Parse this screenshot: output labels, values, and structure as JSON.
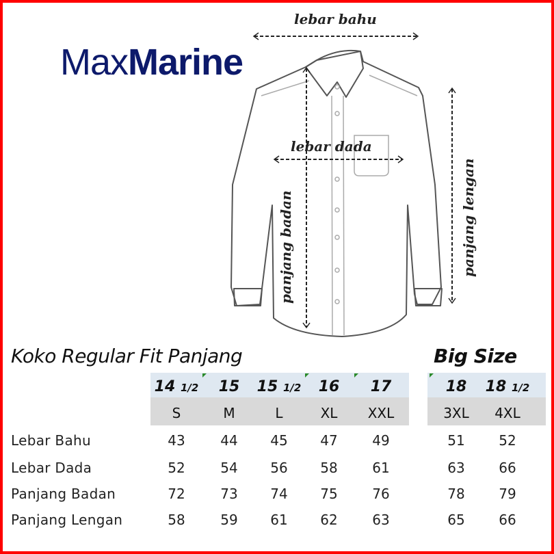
{
  "brand": {
    "part1": "Max",
    "part2": "Marine"
  },
  "diagram": {
    "lebar_bahu": "lebar bahu",
    "lebar_dada": "lebar dada",
    "panjang_badan": "panjang badan",
    "panjang_lengan": "panjang lengan"
  },
  "table": {
    "title": "Koko Regular Fit Panjang",
    "big_title": "Big Size",
    "collar_sizes": [
      {
        "whole": "14",
        "frac": "1/2"
      },
      {
        "whole": "15",
        "frac": ""
      },
      {
        "whole": "15",
        "frac": "1/2"
      },
      {
        "whole": "16",
        "frac": ""
      },
      {
        "whole": "17",
        "frac": ""
      },
      {
        "whole": "18",
        "frac": ""
      },
      {
        "whole": "18",
        "frac": "1/2"
      }
    ],
    "sizes": [
      "S",
      "M",
      "L",
      "XL",
      "XXL",
      "3XL",
      "4XL"
    ],
    "rows": [
      {
        "label": "Lebar Bahu",
        "values": [
          "43",
          "44",
          "45",
          "47",
          "49",
          "51",
          "52"
        ]
      },
      {
        "label": "Lebar Dada",
        "values": [
          "52",
          "54",
          "56",
          "58",
          "61",
          "63",
          "66"
        ]
      },
      {
        "label": "Panjang Badan",
        "values": [
          "72",
          "73",
          "74",
          "75",
          "76",
          "78",
          "79"
        ]
      },
      {
        "label": "Panjang Lengan",
        "values": [
          "58",
          "59",
          "61",
          "62",
          "63",
          "65",
          "66"
        ]
      }
    ]
  },
  "colors": {
    "border": "#ff0000",
    "brand": "#0d1a6b",
    "header_band": "#dfe8f1",
    "size_band": "#d9d9d9"
  }
}
